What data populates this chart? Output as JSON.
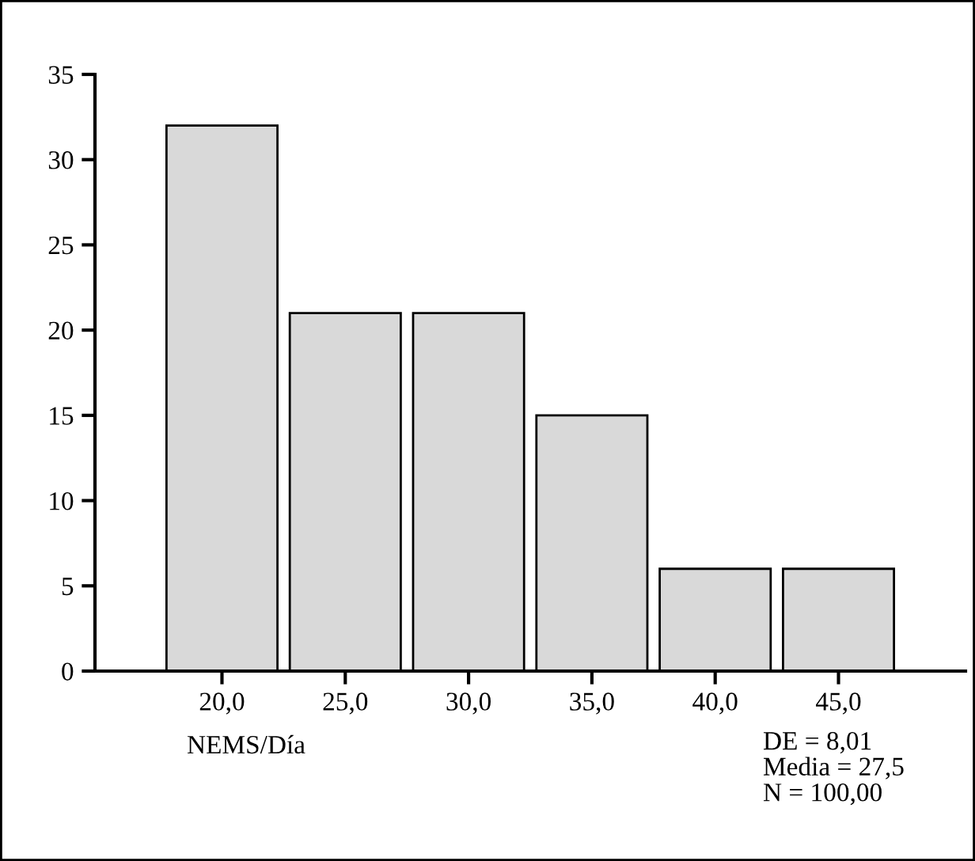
{
  "chart_data": {
    "type": "bar",
    "categories": [
      "20,0",
      "25,0",
      "30,0",
      "35,0",
      "40,0",
      "45,0"
    ],
    "values": [
      32,
      21,
      21,
      15,
      6,
      6
    ],
    "color": "#d9d9d9",
    "xlabel": "NEMS/Día",
    "ylim": [
      0,
      35
    ],
    "yticks": [
      0,
      5,
      10,
      15,
      20,
      25,
      30,
      35
    ],
    "grid": false,
    "annotations": [
      "DE = 8,01\nMedia = 27,5\nN = 100,00"
    ]
  }
}
